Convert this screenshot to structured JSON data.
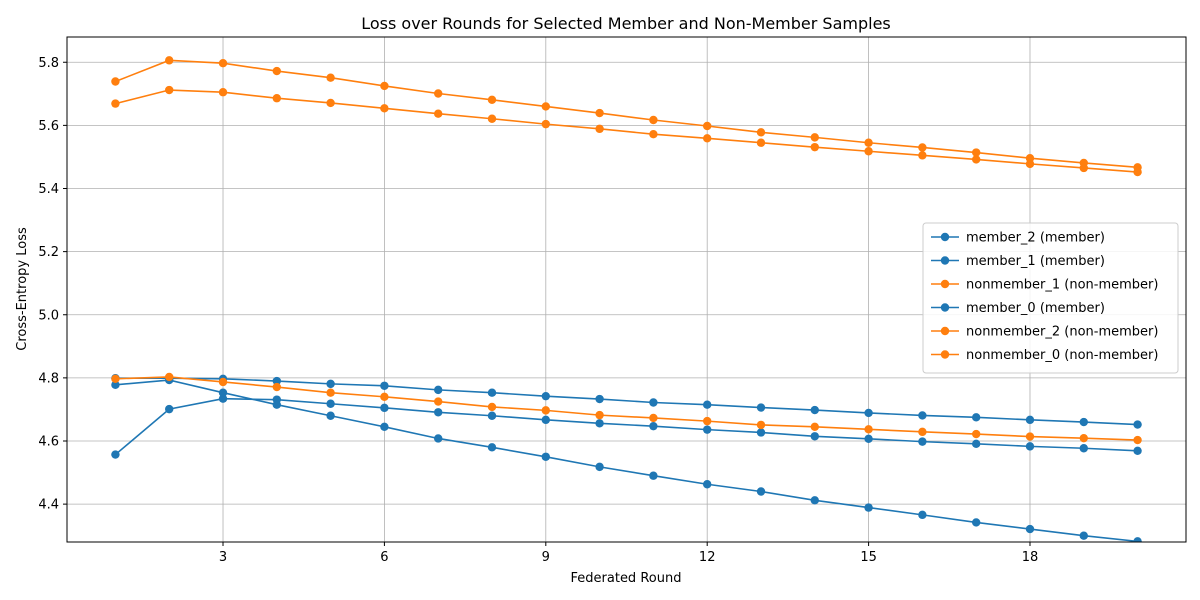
{
  "chart_data": {
    "type": "line",
    "title": "Loss over Rounds for Selected Member and Non-Member Samples",
    "xlabel": "Federated Round",
    "ylabel": "Cross-Entropy Loss",
    "xlim": [
      0.1,
      20.9
    ],
    "ylim": [
      4.28,
      5.88
    ],
    "xticks": [
      3,
      6,
      9,
      12,
      15,
      18
    ],
    "yticks": [
      4.4,
      4.6,
      4.8,
      5.0,
      5.2,
      5.4,
      5.6,
      5.8
    ],
    "ytick_labels": [
      "4.4",
      "4.6",
      "4.8",
      "5.0",
      "5.2",
      "5.4",
      "5.6",
      "5.8"
    ],
    "grid": true,
    "legend_position": "center-right",
    "x": [
      1,
      2,
      3,
      4,
      5,
      6,
      7,
      8,
      9,
      10,
      11,
      12,
      13,
      14,
      15,
      16,
      17,
      18,
      19,
      20
    ],
    "series": [
      {
        "name": "member_2 (member)",
        "color": "#1f77b4",
        "values": [
          4.557,
          4.701,
          4.734,
          4.731,
          4.718,
          4.705,
          4.691,
          4.68,
          4.667,
          4.656,
          4.647,
          4.636,
          4.627,
          4.615,
          4.607,
          4.598,
          4.591,
          4.583,
          4.577,
          4.569
        ]
      },
      {
        "name": "member_1 (member)",
        "color": "#1f77b4",
        "values": [
          4.778,
          4.793,
          4.753,
          4.715,
          4.68,
          4.645,
          4.608,
          4.58,
          4.55,
          4.518,
          4.49,
          4.463,
          4.44,
          4.412,
          4.389,
          4.366,
          4.342,
          4.321,
          4.3,
          4.282
        ]
      },
      {
        "name": "nonmember_1 (non-member)",
        "color": "#ff7f0e",
        "values": [
          5.669,
          5.712,
          5.705,
          5.686,
          5.671,
          5.654,
          5.637,
          5.621,
          5.604,
          5.589,
          5.572,
          5.559,
          5.545,
          5.531,
          5.518,
          5.505,
          5.492,
          5.478,
          5.465,
          5.452
        ]
      },
      {
        "name": "member_0 (member)",
        "color": "#1f77b4",
        "values": [
          4.799,
          4.799,
          4.797,
          4.79,
          4.781,
          4.775,
          4.762,
          4.753,
          4.742,
          4.733,
          4.722,
          4.715,
          4.706,
          4.698,
          4.689,
          4.681,
          4.675,
          4.667,
          4.66,
          4.652
        ]
      },
      {
        "name": "nonmember_2 (non-member)",
        "color": "#ff7f0e",
        "values": [
          4.797,
          4.803,
          4.787,
          4.771,
          4.753,
          4.74,
          4.725,
          4.708,
          4.697,
          4.682,
          4.673,
          4.663,
          4.651,
          4.645,
          4.637,
          4.629,
          4.622,
          4.614,
          4.609,
          4.603
        ]
      },
      {
        "name": "nonmember_0 (non-member)",
        "color": "#ff7f0e",
        "values": [
          5.739,
          5.806,
          5.797,
          5.772,
          5.751,
          5.725,
          5.701,
          5.681,
          5.66,
          5.639,
          5.617,
          5.598,
          5.578,
          5.562,
          5.545,
          5.53,
          5.514,
          5.496,
          5.481,
          5.467
        ]
      }
    ]
  }
}
